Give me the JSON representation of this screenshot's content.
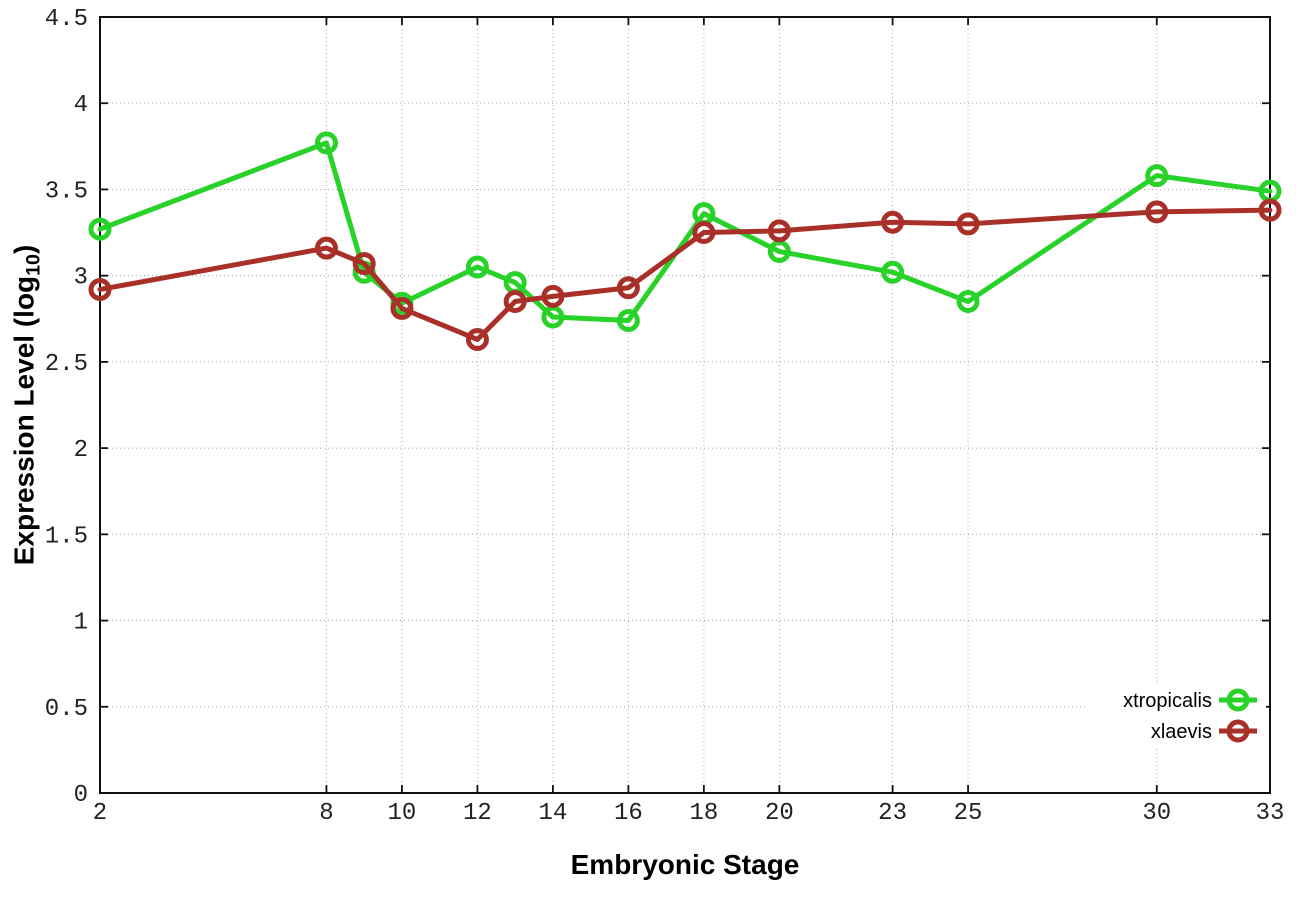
{
  "figure": {
    "background": "#ffffff",
    "border_color": "#111111",
    "grid_color": "#a9a9a9"
  },
  "chart_data": {
    "type": "line",
    "title": "",
    "xlabel": "Embryonic Stage",
    "ylabel": "Expression Level (log10)",
    "ylabel_parts": {
      "main": "Expression Level (log",
      "sub": "10",
      "close": ")"
    },
    "xlim": [
      2,
      33
    ],
    "ylim": [
      0,
      4.5
    ],
    "x_ticks": [
      2,
      8,
      10,
      12,
      14,
      16,
      18,
      20,
      23,
      25,
      30,
      33
    ],
    "y_ticks": [
      0,
      0.5,
      1,
      1.5,
      2,
      2.5,
      3,
      3.5,
      4,
      4.5
    ],
    "grid": true,
    "legend_position": "bottom-right",
    "x": [
      2,
      8,
      9,
      10,
      12,
      13,
      14,
      16,
      18,
      20,
      23,
      25,
      30,
      33
    ],
    "series": [
      {
        "name": "xtropicalis",
        "color": "#28d228",
        "values": [
          3.27,
          3.77,
          3.02,
          2.84,
          3.05,
          2.96,
          2.76,
          2.74,
          3.36,
          3.14,
          3.02,
          2.85,
          3.58,
          3.49
        ]
      },
      {
        "name": "xlaevis",
        "color": "#a93028",
        "values": [
          2.92,
          3.16,
          3.07,
          2.81,
          2.63,
          2.85,
          2.88,
          2.93,
          3.25,
          3.26,
          3.31,
          3.3,
          3.37,
          3.38
        ]
      }
    ]
  }
}
